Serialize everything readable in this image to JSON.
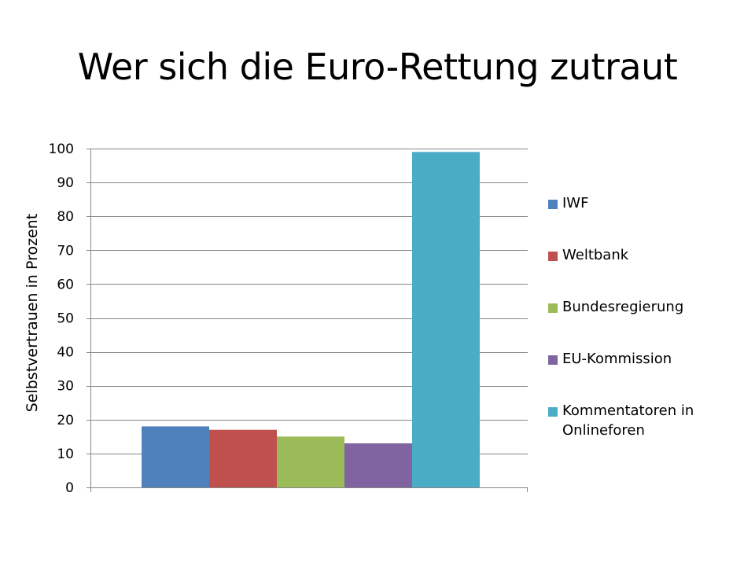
{
  "slide": {
    "title": "Wer sich die Euro-Rettung zutraut"
  },
  "chart_data": {
    "type": "bar",
    "categories": [
      "IWF",
      "Weltbank",
      "Bundesregierung",
      "EU-Kommission",
      "Kommentatoren in Onlineforen"
    ],
    "values": [
      18,
      17,
      15,
      13,
      99
    ],
    "colors": [
      "#4f81bd",
      "#c0504d",
      "#9bbb59",
      "#8064a2",
      "#4bacc6"
    ],
    "title": "",
    "xlabel": "",
    "ylabel": "Selbstvertrauen in Prozent",
    "ylim": [
      0,
      100
    ],
    "yticks": [
      0,
      10,
      20,
      30,
      40,
      50,
      60,
      70,
      80,
      90,
      100
    ],
    "grid": true,
    "legend": {
      "placement": "right",
      "entries": [
        "IWF",
        "Weltbank",
        "Bundesregierung",
        "EU-Kommission",
        "Kommentatoren in Onlineforen"
      ]
    }
  }
}
